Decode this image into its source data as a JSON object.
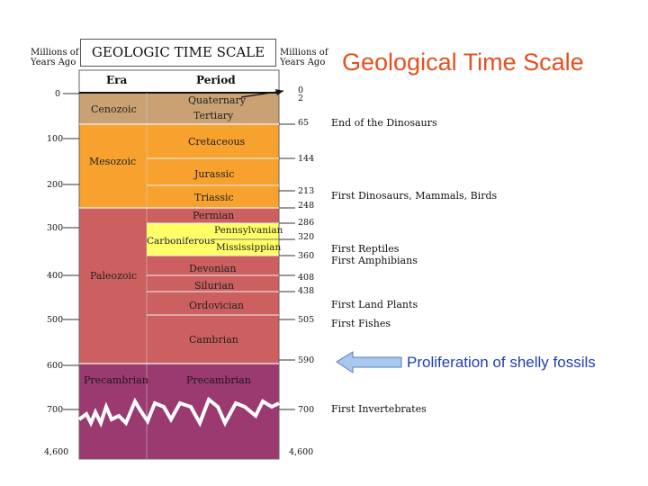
{
  "header": {
    "left_axis_label": [
      "Millions of",
      "Years Ago"
    ],
    "right_axis_label": [
      "Millions of",
      "Years Ago"
    ],
    "title": "GEOLOGIC TIME SCALE",
    "era_column": "Era",
    "period_column": "Period"
  },
  "slide_title": "Geological Time Scale",
  "callout": "Proliferation of shelly fossils",
  "left_ticks": [
    "0",
    "100",
    "200",
    "300",
    "400",
    "500",
    "600",
    "700",
    "4,600"
  ],
  "right_ticks": [
    "0",
    "2",
    "65",
    "144",
    "213",
    "248",
    "286",
    "320",
    "360",
    "408",
    "438",
    "505",
    "590",
    "700",
    "4,600"
  ],
  "eras": [
    {
      "name": "Cenozoic",
      "color": "#c9a173"
    },
    {
      "name": "Mesozoic",
      "color": "#f7a12e"
    },
    {
      "name": "Paleozoic",
      "color": "#cc5f5f"
    },
    {
      "name": "Precambrian",
      "color": "#9b3a70"
    }
  ],
  "periods": [
    {
      "name": "Quaternary"
    },
    {
      "name": "Tertiary"
    },
    {
      "name": "Cretaceous"
    },
    {
      "name": "Jurassic"
    },
    {
      "name": "Triassic"
    },
    {
      "name": "Permian"
    },
    {
      "name": "Carboniferous",
      "subs": [
        "Pennsylvanian",
        "Mississippian"
      ],
      "color": "#ffff66"
    },
    {
      "name": "Devonian"
    },
    {
      "name": "Silurian"
    },
    {
      "name": "Ordovician"
    },
    {
      "name": "Cambrian"
    },
    {
      "name": "Precambrian"
    }
  ],
  "events": [
    "End of the Dinosaurs",
    "First Dinosaurs, Mammals, Birds",
    "First Reptiles",
    "First Amphibians",
    "First Land Plants",
    "First Fishes",
    "First Invertebrates"
  ],
  "colors": {
    "title": "#e5501f",
    "callout_text": "#1f3fb3",
    "arrow_fill": "#a8c8f0"
  }
}
